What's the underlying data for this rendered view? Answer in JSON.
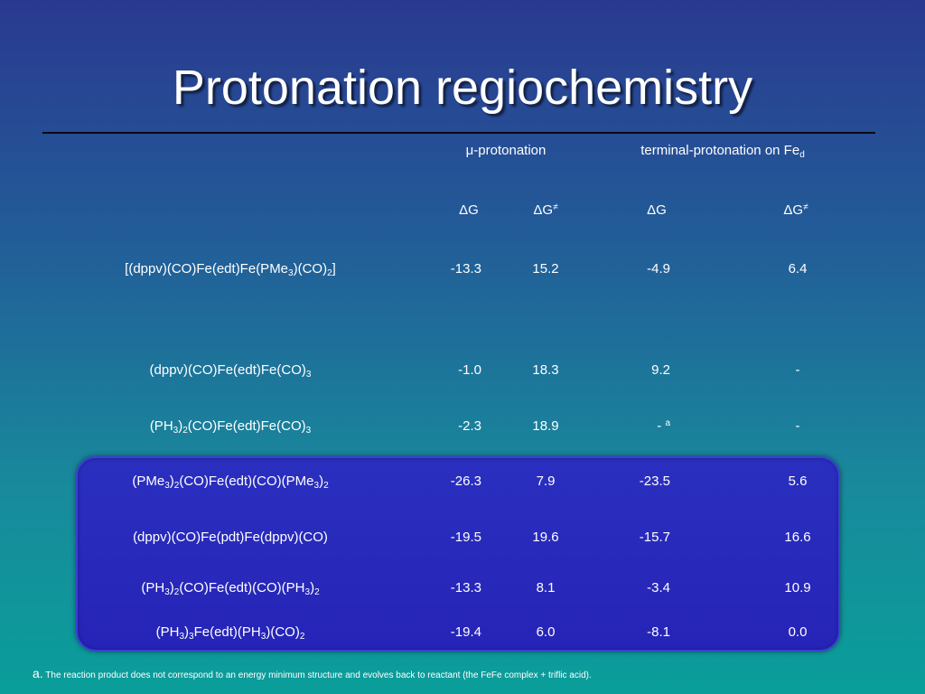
{
  "slide": {
    "title": "Protonation regiochemistry"
  },
  "headers": {
    "mu_group": "μ-protonation",
    "terminal_group": "terminal-protonation on Fe",
    "terminal_group_sub": "d",
    "dG": "ΔG",
    "dG_ts": "ΔG",
    "ts_mark": "≠"
  },
  "rows": [
    {
      "compound": [
        "[(dppv)(CO)Fe(edt)Fe(PMe",
        "3",
        ")(CO)",
        "2",
        "]"
      ],
      "mu_dG": "-13.3",
      "mu_dGts": "15.2",
      "term_dG": "-4.9",
      "term_dGts": "6.4",
      "term_note": ""
    },
    {
      "compound": [
        "(dppv)(CO)Fe(edt)Fe(CO)",
        "3"
      ],
      "mu_dG": "-1.0",
      "mu_dGts": "18.3",
      "term_dG": "9.2",
      "term_dGts": "-",
      "term_note": ""
    },
    {
      "compound": [
        "(PH",
        "3",
        ")",
        "2",
        "(CO)Fe(edt)Fe(CO)",
        "3"
      ],
      "mu_dG": "-2.3",
      "mu_dGts": "18.9",
      "term_dG": "- ",
      "term_dGts": "-",
      "term_note": "a"
    },
    {
      "compound": [
        "(PMe",
        "3",
        ")",
        "2",
        "(CO)Fe(edt)(CO)(PMe",
        "3",
        ")",
        "2"
      ],
      "mu_dG": "-26.3",
      "mu_dGts": "7.9",
      "term_dG": "-23.5",
      "term_dGts": "5.6",
      "term_note": ""
    },
    {
      "compound": [
        "(dppv)(CO)Fe(pdt)Fe(dppv)(CO)"
      ],
      "mu_dG": "-19.5",
      "mu_dGts": "19.6",
      "term_dG": "-15.7",
      "term_dGts": "16.6",
      "term_note": ""
    },
    {
      "compound": [
        "(PH",
        "3",
        ")",
        "2",
        "(CO)Fe(edt)(CO)(PH",
        "3",
        ")",
        "2"
      ],
      "mu_dG": "-13.3",
      "mu_dGts": "8.1",
      "term_dG": "-3.4",
      "term_dGts": "10.9",
      "term_note": ""
    },
    {
      "compound": [
        "(PH",
        "3",
        ")",
        "3",
        "Fe(edt)(PH",
        "3",
        ")(CO)",
        "2"
      ],
      "mu_dG": "-19.4",
      "mu_dGts": "6.0",
      "term_dG": "-8.1",
      "term_dGts": "0.0",
      "term_note": ""
    }
  ],
  "footnote": {
    "marker": "a.",
    "text": " The  reaction product does not correspond to an energy  minimum structure and evolves back to reactant (the FeFe complex + triflic acid)."
  },
  "colors": {
    "background_top": "#2a3990",
    "background_bottom": "#0a9e9a",
    "highlight_box": "#2624b8",
    "text": "#ffffff"
  }
}
